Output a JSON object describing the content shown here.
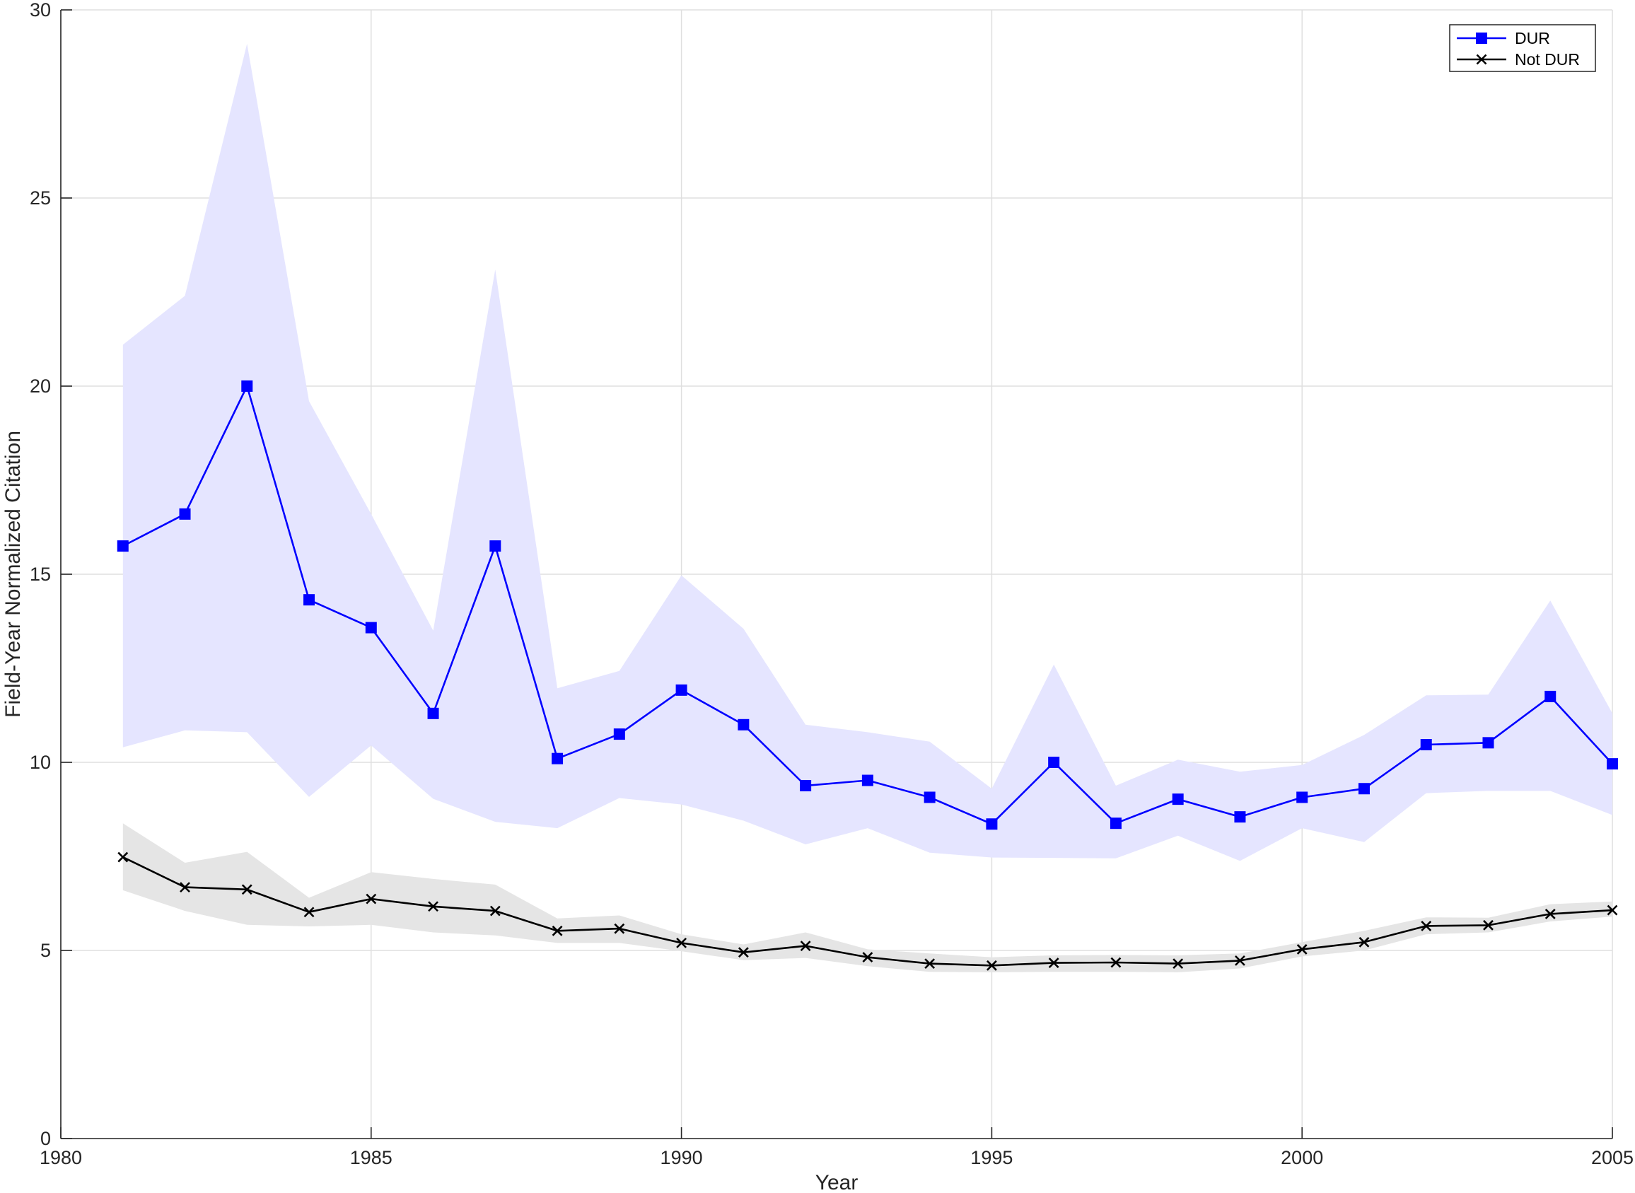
{
  "chart_data": {
    "type": "line",
    "title": "",
    "xlabel": "Year",
    "ylabel": "Field-Year Normalized Citation",
    "xlim": [
      1980,
      2005
    ],
    "ylim": [
      0,
      30
    ],
    "xticks": [
      1980,
      1985,
      1990,
      1995,
      2000,
      2005
    ],
    "yticks": [
      0,
      5,
      10,
      15,
      20,
      25,
      30
    ],
    "grid": true,
    "legend_position": "top-right",
    "x": [
      1981,
      1982,
      1983,
      1984,
      1985,
      1986,
      1987,
      1988,
      1989,
      1990,
      1991,
      1992,
      1993,
      1994,
      1995,
      1996,
      1997,
      1998,
      1999,
      2000,
      2001,
      2002,
      2003,
      2004,
      2005
    ],
    "series": [
      {
        "name": "DUR",
        "color": "#0000ff",
        "band_color": "#e5e5ff",
        "marker": "square",
        "values": [
          15.75,
          16.6,
          20.0,
          14.32,
          13.58,
          11.3,
          15.75,
          10.1,
          10.75,
          11.92,
          11.0,
          9.38,
          9.52,
          9.07,
          8.36,
          10.0,
          8.38,
          9.02,
          8.55,
          9.07,
          9.3,
          10.47,
          10.52,
          11.75,
          9.96
        ],
        "upper": [
          21.1,
          22.4,
          29.1,
          19.6,
          16.6,
          13.5,
          23.1,
          11.97,
          12.43,
          14.97,
          13.55,
          11.0,
          10.8,
          10.55,
          9.3,
          12.6,
          9.38,
          10.07,
          9.75,
          9.93,
          10.73,
          11.78,
          11.8,
          14.3,
          11.3
        ],
        "lower": [
          10.4,
          10.85,
          10.8,
          9.08,
          10.45,
          9.03,
          8.42,
          8.25,
          9.05,
          8.88,
          8.45,
          7.82,
          8.25,
          7.6,
          7.47,
          7.46,
          7.45,
          8.05,
          7.38,
          8.25,
          7.88,
          9.18,
          9.24,
          9.24,
          8.6
        ]
      },
      {
        "name": "Not DUR",
        "color": "#000000",
        "band_color": "#e5e5e5",
        "marker": "x",
        "values": [
          7.48,
          6.68,
          6.62,
          6.02,
          6.37,
          6.17,
          6.05,
          5.52,
          5.58,
          5.2,
          4.95,
          5.12,
          4.82,
          4.65,
          4.6,
          4.67,
          4.68,
          4.65,
          4.73,
          5.03,
          5.22,
          5.65,
          5.67,
          5.97,
          6.07
        ],
        "upper": [
          8.38,
          7.33,
          7.62,
          6.4,
          7.08,
          6.9,
          6.75,
          5.85,
          5.93,
          5.43,
          5.16,
          5.48,
          5.03,
          4.92,
          4.82,
          4.87,
          4.88,
          4.87,
          4.92,
          5.22,
          5.52,
          5.88,
          5.87,
          6.23,
          6.3
        ],
        "lower": [
          6.6,
          6.05,
          5.68,
          5.64,
          5.68,
          5.48,
          5.4,
          5.2,
          5.2,
          4.98,
          4.74,
          4.8,
          4.58,
          4.43,
          4.42,
          4.43,
          4.43,
          4.42,
          4.52,
          4.84,
          5.0,
          5.43,
          5.48,
          5.77,
          5.9
        ]
      }
    ]
  }
}
